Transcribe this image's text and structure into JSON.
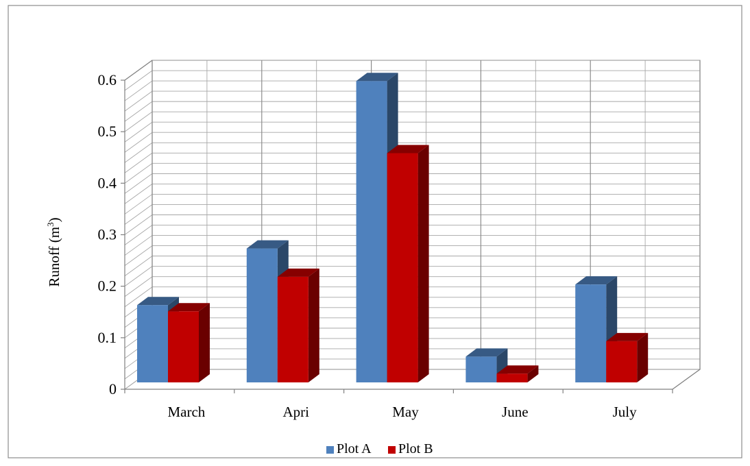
{
  "chart_data": {
    "type": "bar",
    "categories": [
      "March",
      "Apri",
      "May",
      "June",
      "July"
    ],
    "series": [
      {
        "name": "Plot A",
        "values": [
          0.15,
          0.26,
          0.585,
          0.05,
          0.19
        ]
      },
      {
        "name": "Plot B",
        "values": [
          0.138,
          0.205,
          0.445,
          0.017,
          0.08
        ]
      }
    ],
    "ylabel": "Runoff (m",
    "ylabel_superscript": "3",
    "ylabel_suffix": ")",
    "yticks": [
      "0",
      "0.1",
      "0.2",
      "0.3",
      "0.4",
      "0.5",
      "0.6"
    ],
    "ylim": [
      0,
      0.6
    ],
    "grid": true,
    "legend_position": "bottom",
    "colors": {
      "Plot A": "#4F81BD",
      "Plot B": "#C00000"
    }
  }
}
